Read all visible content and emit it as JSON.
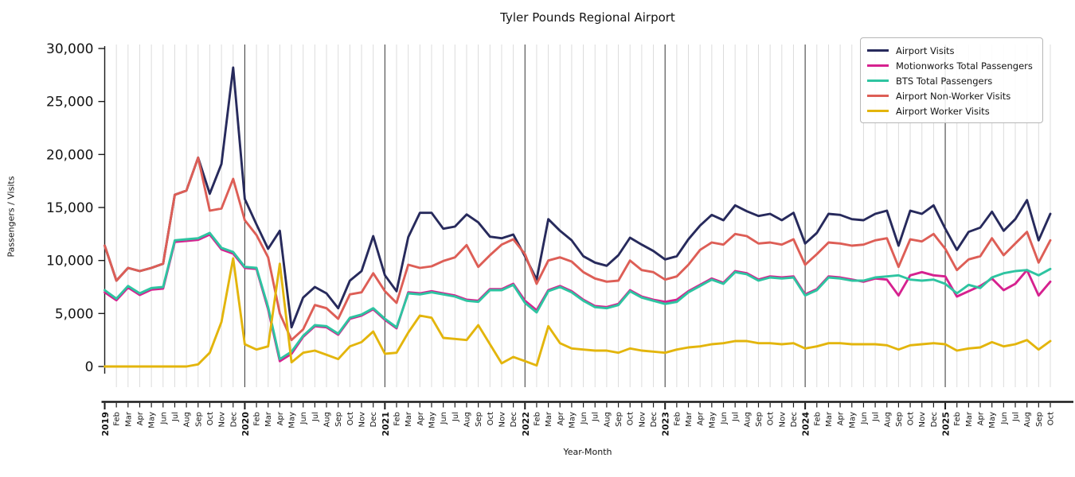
{
  "title": "Tyler Pounds Regional Airport",
  "chart_data": {
    "type": "line",
    "title": "Tyler Pounds Regional Airport",
    "xlabel": "Year-Month",
    "ylabel": "Passengers / Visits",
    "ylim": [
      -2000,
      30500
    ],
    "grid": "vertical-monthly",
    "legend_position": "upper-right",
    "y_ticks": [
      0,
      5000,
      10000,
      15000,
      20000,
      25000,
      30000
    ],
    "y_tick_labels": [
      "0",
      "5,000",
      "10,000",
      "15,000",
      "20,000",
      "25,000",
      "30,000"
    ],
    "x_labels": [
      "2019",
      "Feb",
      "Mar",
      "Apr",
      "May",
      "Jun",
      "Jul",
      "Aug",
      "Sep",
      "Oct",
      "Nov",
      "Dec",
      "2020",
      "Feb",
      "Mar",
      "Apr",
      "May",
      "Jun",
      "Jul",
      "Aug",
      "Sep",
      "Oct",
      "Nov",
      "Dec",
      "2021",
      "Feb",
      "Mar",
      "Apr",
      "May",
      "Jun",
      "Jul",
      "Aug",
      "Sep",
      "Oct",
      "Nov",
      "Dec",
      "2022",
      "Feb",
      "Mar",
      "Apr",
      "May",
      "Jun",
      "Jul",
      "Aug",
      "Sep",
      "Oct",
      "Nov",
      "Dec",
      "2023",
      "Feb",
      "Mar",
      "Apr",
      "May",
      "Jun",
      "Jul",
      "Aug",
      "Sep",
      "Oct",
      "Nov",
      "Dec",
      "2024",
      "Feb",
      "Mar",
      "Apr",
      "May",
      "Jun",
      "Jul",
      "Aug",
      "Sep",
      "Oct",
      "Nov",
      "Dec",
      "2025",
      "Feb",
      "Mar",
      "Apr",
      "May",
      "Jun",
      "Jul",
      "Aug",
      "Sep",
      "Oct"
    ],
    "year_label_indices": [
      0,
      12,
      24,
      36,
      48,
      60,
      72
    ],
    "series": [
      {
        "name": "Airport Visits",
        "color": "#272a5c",
        "values": [
          11400,
          8100,
          9300,
          9000,
          9300,
          9700,
          16200,
          16600,
          19700,
          16300,
          19100,
          28200,
          15800,
          13400,
          11100,
          12800,
          3700,
          6500,
          7500,
          6900,
          5500,
          8100,
          9000,
          12300,
          8600,
          7100,
          12200,
          14500,
          14500,
          13000,
          13200,
          14350,
          13600,
          12250,
          12100,
          12450,
          10400,
          8200,
          13900,
          12800,
          11900,
          10400,
          9800,
          9500,
          10500,
          12150,
          11500,
          10900,
          10100,
          10400,
          12000,
          13300,
          14300,
          13800,
          15200,
          14650,
          14200,
          14400,
          13800,
          14500,
          11600,
          12600,
          14400,
          14300,
          13900,
          13800,
          14400,
          14700,
          11400,
          14700,
          14400,
          15200,
          13000,
          11000,
          12700,
          13100,
          14600,
          12800,
          13900,
          15700,
          11900,
          14400
        ]
      },
      {
        "name": "Motionworks Total Passengers",
        "color": "#d6218f",
        "values": [
          7000,
          6250,
          7450,
          6750,
          7250,
          7350,
          11750,
          11850,
          11950,
          12450,
          11050,
          10650,
          9300,
          9200,
          5400,
          500,
          1200,
          2800,
          3800,
          3700,
          3000,
          4500,
          4800,
          5400,
          4400,
          3600,
          7000,
          6900,
          7100,
          6900,
          6700,
          6300,
          6200,
          7300,
          7300,
          7800,
          6200,
          5300,
          7200,
          7600,
          7100,
          6300,
          5700,
          5600,
          5900,
          7200,
          6600,
          6300,
          6100,
          6300,
          7100,
          7700,
          8300,
          7900,
          9000,
          8800,
          8200,
          8500,
          8400,
          8500,
          6800,
          7300,
          8500,
          8400,
          8200,
          8000,
          8300,
          8200,
          6700,
          8600,
          8900,
          8600,
          8500,
          6600,
          7100,
          7600,
          8300,
          7200,
          7800,
          9100,
          6700,
          8000
        ]
      },
      {
        "name": "BTS Total Passengers",
        "color": "#2ec4a1",
        "values": [
          7200,
          6400,
          7600,
          6900,
          7400,
          7500,
          11900,
          12000,
          12100,
          12600,
          11200,
          10800,
          9400,
          9300,
          5600,
          700,
          1400,
          2900,
          3900,
          3800,
          3100,
          4600,
          4900,
          5500,
          4500,
          3700,
          6900,
          6800,
          7000,
          6800,
          6600,
          6200,
          6100,
          7200,
          7200,
          7700,
          6000,
          5100,
          7100,
          7500,
          7000,
          6200,
          5600,
          5500,
          5800,
          7100,
          6500,
          6200,
          5900,
          6100,
          7000,
          7600,
          8200,
          7800,
          8900,
          8700,
          8100,
          8400,
          8300,
          8400,
          6700,
          7200,
          8400,
          8300,
          8100,
          8100,
          8400,
          8500,
          8600,
          8200,
          8100,
          8200,
          7800,
          6900,
          7700,
          7400,
          8400,
          8800,
          9000,
          9100,
          8600,
          9200
        ]
      },
      {
        "name": "Airport Non-Worker Visits",
        "color": "#dd5e56",
        "values": [
          11400,
          8100,
          9300,
          9000,
          9300,
          9700,
          16200,
          16600,
          19700,
          14700,
          14900,
          17700,
          13800,
          12400,
          10300,
          5000,
          2500,
          3500,
          5800,
          5500,
          4500,
          6800,
          7000,
          8800,
          7100,
          6000,
          9600,
          9300,
          9450,
          9950,
          10300,
          11450,
          9400,
          10500,
          11500,
          12000,
          10600,
          7800,
          10000,
          10300,
          9900,
          8900,
          8300,
          8000,
          8100,
          10000,
          9100,
          8900,
          8200,
          8500,
          9600,
          11000,
          11700,
          11500,
          12500,
          12300,
          11600,
          11700,
          11500,
          12000,
          9600,
          10600,
          11700,
          11600,
          11400,
          11500,
          11900,
          12100,
          9400,
          12000,
          11800,
          12500,
          11100,
          9100,
          10100,
          10400,
          12100,
          10500,
          11600,
          12700,
          9800,
          11900
        ]
      },
      {
        "name": "Airport Worker Visits",
        "color": "#e3b50c",
        "values": [
          0,
          0,
          0,
          0,
          0,
          0,
          0,
          0,
          200,
          1300,
          4200,
          10200,
          2100,
          1600,
          1900,
          9700,
          400,
          1300,
          1500,
          1100,
          700,
          1900,
          2300,
          3300,
          1200,
          1300,
          3200,
          4800,
          4600,
          2700,
          2600,
          2500,
          3900,
          2100,
          300,
          900,
          500,
          100,
          3800,
          2200,
          1700,
          1600,
          1500,
          1500,
          1300,
          1700,
          1500,
          1400,
          1300,
          1600,
          1800,
          1900,
          2100,
          2200,
          2400,
          2400,
          2200,
          2200,
          2100,
          2200,
          1700,
          1900,
          2200,
          2200,
          2100,
          2100,
          2100,
          2000,
          1600,
          2000,
          2100,
          2200,
          2100,
          1500,
          1700,
          1800,
          2300,
          1900,
          2100,
          2500,
          1600,
          2400
        ]
      }
    ]
  }
}
